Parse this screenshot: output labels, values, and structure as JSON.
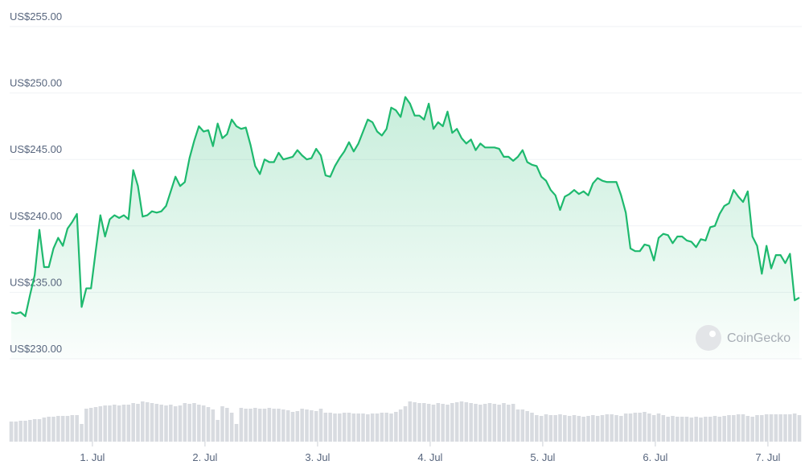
{
  "chart_data": {
    "type": "line",
    "watermark": "CoinGecko",
    "xlim": [
      0,
      168
    ],
    "xticks": [
      {
        "value": 17.3,
        "label": "1. Jul"
      },
      {
        "value": 41.3,
        "label": "2. Jul"
      },
      {
        "value": 65.3,
        "label": "3. Jul"
      },
      {
        "value": 89.3,
        "label": "4. Jul"
      },
      {
        "value": 113.3,
        "label": "5. Jul"
      },
      {
        "value": 137.3,
        "label": "6. Jul"
      },
      {
        "value": 161.3,
        "label": "7. Jul"
      }
    ],
    "ylim": [
      230,
      255
    ],
    "yticks": [
      {
        "value": 230,
        "label": "US$230.00"
      },
      {
        "value": 235,
        "label": "US$235.00"
      },
      {
        "value": 240,
        "label": "US$240.00"
      },
      {
        "value": 245,
        "label": "US$245.00"
      },
      {
        "value": 250,
        "label": "US$250.00"
      },
      {
        "value": 255,
        "label": "US$255.00"
      }
    ],
    "y2lim": [
      0,
      60
    ],
    "grid": true,
    "series": [
      {
        "color": "#1eb96e",
        "values": [
          233.5,
          233.4,
          233.5,
          233.2,
          234.8,
          236.3,
          239.7,
          236.9,
          236.9,
          238.3,
          239.1,
          238.5,
          239.8,
          240.3,
          240.9,
          233.9,
          235.3,
          235.3,
          238.1,
          240.8,
          239.2,
          240.5,
          240.8,
          240.6,
          240.8,
          240.5,
          244.2,
          243.0,
          240.7,
          240.8,
          241.1,
          241.0,
          241.1,
          241.5,
          242.6,
          243.7,
          243.0,
          243.3,
          245.1,
          246.4,
          247.5,
          247.1,
          247.2,
          246.0,
          247.7,
          246.6,
          246.9,
          248.0,
          247.5,
          247.3,
          247.4,
          246.1,
          244.5,
          243.9,
          245.0,
          244.8,
          244.8,
          245.5,
          245.0,
          245.1,
          245.2,
          245.7,
          245.3,
          245.0,
          245.1,
          245.8,
          245.3,
          243.8,
          243.7,
          244.5,
          245.1,
          245.6,
          246.3,
          245.6,
          246.2,
          247.1,
          248.0,
          247.8,
          247.1,
          246.8,
          247.3,
          248.9,
          248.7,
          248.2,
          249.7,
          249.2,
          248.3,
          248.3,
          248.0,
          249.2,
          247.3,
          247.8,
          247.5,
          248.6,
          247.0,
          247.3,
          246.6,
          246.2,
          246.5,
          245.7,
          246.2,
          245.9,
          245.9,
          245.9,
          245.8,
          245.2,
          245.2,
          244.9,
          245.2,
          245.7,
          244.8,
          244.6,
          244.5,
          243.7,
          243.4,
          242.7,
          242.3,
          241.2,
          242.2,
          242.4,
          242.7,
          242.4,
          242.6,
          242.3,
          243.2,
          243.6,
          243.4,
          243.3,
          243.3,
          243.3,
          242.3,
          241.0,
          238.3,
          238.1,
          238.1,
          238.6,
          238.5,
          237.4,
          239.1,
          239.4,
          239.3,
          238.7,
          239.2,
          239.2,
          238.9,
          238.8,
          238.4,
          239.0,
          238.9,
          239.9,
          240.0,
          240.9,
          241.5,
          241.7,
          242.7,
          242.2,
          241.8,
          242.6,
          239.2,
          238.5,
          236.4,
          238.5,
          236.8,
          237.8,
          237.8,
          237.2,
          237.9,
          234.4,
          234.6
        ]
      },
      {
        "type": "bar",
        "axis": "y2",
        "color": "#d8dbe0",
        "values": [
          25,
          25,
          26,
          26,
          27,
          28,
          28,
          30,
          31,
          31,
          32,
          32,
          32,
          33,
          33,
          22,
          41,
          42,
          43,
          44,
          45,
          45,
          46,
          45,
          46,
          46,
          48,
          47,
          50,
          49,
          48,
          47,
          46,
          45,
          46,
          44,
          45,
          48,
          47,
          48,
          46,
          45,
          43,
          40,
          27,
          44,
          42,
          36,
          22,
          42,
          41,
          41,
          42,
          41,
          41,
          42,
          41,
          41,
          40,
          39,
          37,
          38,
          41,
          40,
          39,
          38,
          41,
          36,
          36,
          35,
          35,
          36,
          36,
          35,
          35,
          35,
          34,
          35,
          35,
          36,
          36,
          35,
          37,
          40,
          44,
          50,
          49,
          48,
          48,
          47,
          46,
          48,
          47,
          46,
          48,
          49,
          50,
          49,
          48,
          47,
          46,
          47,
          48,
          47,
          46,
          48,
          46,
          47,
          40,
          40,
          38,
          36,
          33,
          32,
          34,
          33,
          33,
          34,
          33,
          32,
          33,
          32,
          31,
          32,
          33,
          32,
          33,
          34,
          34,
          33,
          32,
          35,
          35,
          36,
          36,
          37,
          35,
          33,
          35,
          33,
          31,
          32,
          31,
          31,
          31,
          30,
          31,
          30,
          31,
          31,
          32,
          31,
          32,
          33,
          33,
          34,
          34,
          32,
          31,
          33,
          33,
          34,
          34,
          34,
          34,
          34,
          34,
          35,
          33
        ]
      }
    ]
  }
}
